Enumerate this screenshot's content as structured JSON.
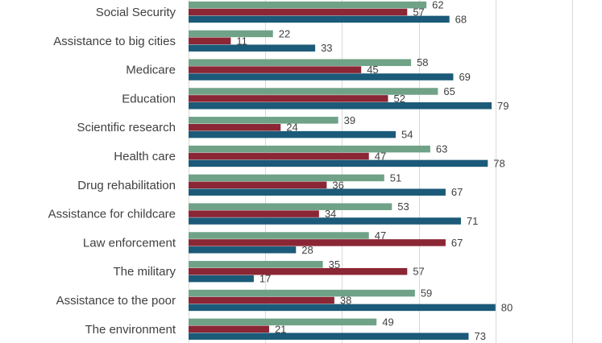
{
  "chart_data": {
    "type": "bar",
    "orientation": "horizontal",
    "categories": [
      "Social Security",
      "Assistance to big cities",
      "Medicare",
      "Education",
      "Scientific research",
      "Health care",
      "Drug rehabilitation",
      "Assistance for childcare",
      "Law enforcement",
      "The military",
      "Assistance to the poor",
      "The environment"
    ],
    "series": [
      {
        "values": [
          62,
          22,
          58,
          65,
          39,
          63,
          51,
          53,
          47,
          35,
          59,
          49
        ],
        "color": "#6fa287"
      },
      {
        "values": [
          57,
          11,
          45,
          52,
          24,
          47,
          36,
          34,
          67,
          57,
          38,
          21
        ],
        "color": "#8b2635"
      },
      {
        "values": [
          68,
          33,
          69,
          79,
          54,
          78,
          67,
          71,
          28,
          17,
          80,
          73
        ],
        "color": "#1b5a78"
      }
    ],
    "xlim": [
      0,
      100
    ],
    "grid": true,
    "legend": "none"
  }
}
